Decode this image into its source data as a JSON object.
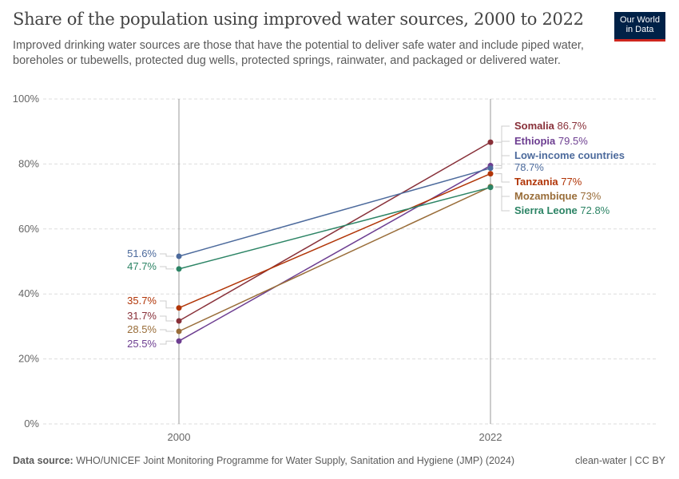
{
  "header": {
    "title": "Share of the population using improved water sources, 2000 to 2022",
    "subtitle": "Improved drinking water sources are those that have the potential to deliver safe water and include piped water, boreholes or tubewells, protected dug wells, protected springs, rainwater, and packaged or delivered water.",
    "logo_line1": "Our World",
    "logo_line2": "in Data"
  },
  "footer": {
    "source_label": "Data source:",
    "source_text": "WHO/UNICEF Joint Monitoring Programme for Water Supply, Sanitation and Hygiene (JMP) (2024)",
    "license": "clean-water | CC BY"
  },
  "chart_data": {
    "type": "line",
    "title": "Share of the population using improved water sources, 2000 to 2022",
    "x": [
      2000,
      2022
    ],
    "x_tick_labels": [
      "2000",
      "2022"
    ],
    "y_ticks": [
      0,
      20,
      40,
      60,
      80,
      100
    ],
    "y_tick_labels": [
      "0%",
      "20%",
      "40%",
      "60%",
      "80%",
      "100%"
    ],
    "ylim": [
      0,
      100
    ],
    "grid": true,
    "series": [
      {
        "name": "Somalia",
        "values": [
          31.7,
          86.7
        ],
        "start_label": "31.7%",
        "end_label": "86.7%",
        "color": "#883039"
      },
      {
        "name": "Ethiopia",
        "values": [
          25.5,
          79.5
        ],
        "start_label": "25.5%",
        "end_label": "79.5%",
        "color": "#6d3e91"
      },
      {
        "name": "Low-income countries",
        "values": [
          51.6,
          78.7
        ],
        "start_label": "51.6%",
        "end_label": "78.7%",
        "color": "#4c6a9c"
      },
      {
        "name": "Tanzania",
        "values": [
          35.7,
          77
        ],
        "start_label": "35.7%",
        "end_label": "77%",
        "color": "#b13507"
      },
      {
        "name": "Mozambique",
        "values": [
          28.5,
          73
        ],
        "start_label": "28.5%",
        "end_label": "73%",
        "color": "#996d39"
      },
      {
        "name": "Sierra Leone",
        "values": [
          47.7,
          72.8
        ],
        "start_label": "47.7%",
        "end_label": "72.8%",
        "color": "#2c8465"
      }
    ]
  }
}
